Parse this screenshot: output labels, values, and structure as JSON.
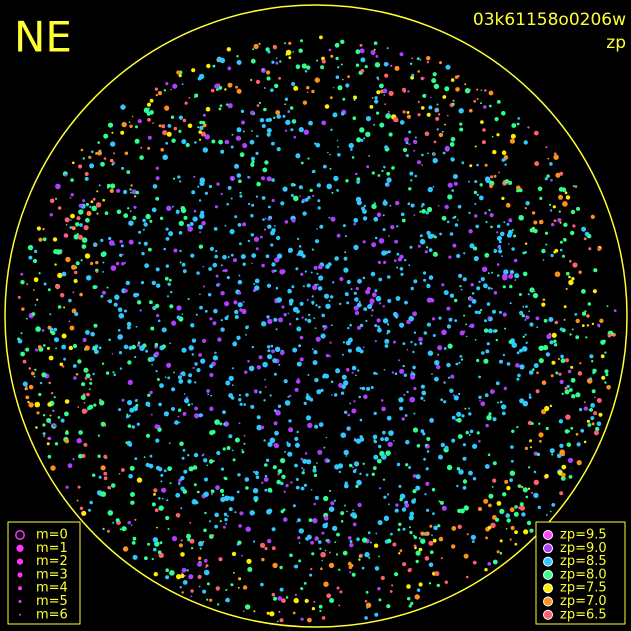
{
  "header": {
    "title": "NE",
    "image_id": "03k61158o0206w",
    "metric": "zp"
  },
  "legend_magnitude": {
    "color": "#ff33ff",
    "items": [
      "m=0",
      "m=1",
      "m=2",
      "m=3",
      "m=4",
      "m=5",
      "m=6"
    ]
  },
  "legend_zp": {
    "items": [
      {
        "label": "zp=9.5",
        "color": "#ff44ff"
      },
      {
        "label": "zp=9.0",
        "color": "#b040ff"
      },
      {
        "label": "zp=8.5",
        "color": "#30c8ff"
      },
      {
        "label": "zp=8.0",
        "color": "#30ff90"
      },
      {
        "label": "zp=7.5",
        "color": "#ffee00"
      },
      {
        "label": "zp=7.0",
        "color": "#ff9020"
      },
      {
        "label": "zp=6.5",
        "color": "#ff6070"
      }
    ]
  }
}
